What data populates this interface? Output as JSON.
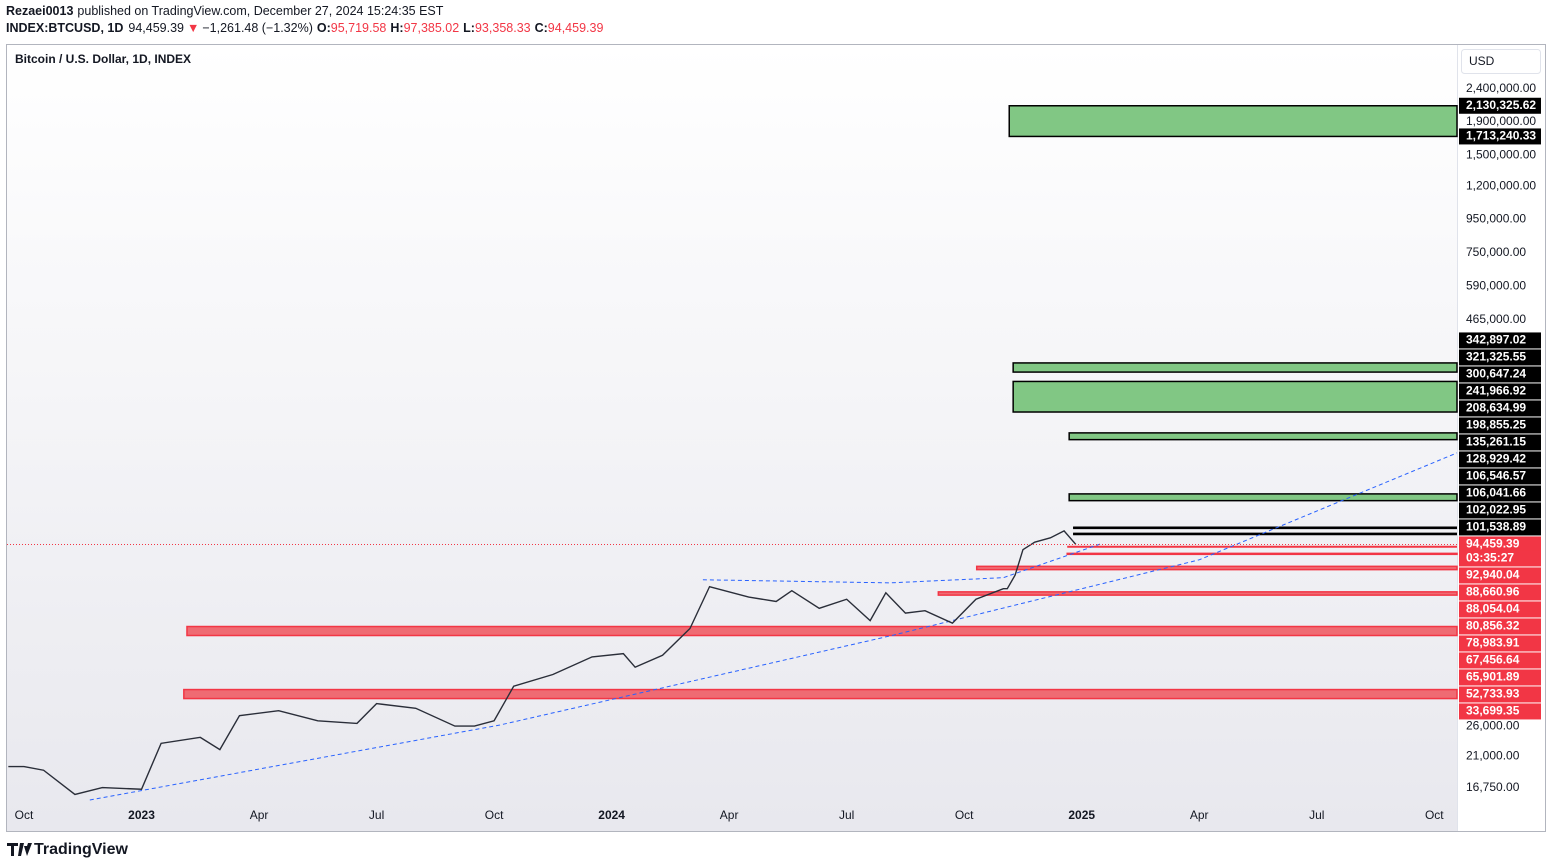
{
  "header": {
    "author": "Rezaei0013",
    "published": "published on TradingView.com, December 27, 2024 15:24:35 EST"
  },
  "chart_data": {
    "type": "line",
    "symbol": "INDEX:BTCUSD, 1D",
    "legend": "Bitcoin / U.S. Dollar, 1D, INDEX",
    "currency": "USD",
    "last": {
      "value": 94459.39,
      "label": "94,459.39"
    },
    "change_arrow": "▼",
    "change": "−1,261.48 (−1.32%)",
    "ohlc": [
      {
        "key": "O:",
        "value": 95719.58,
        "label": "95,719.58"
      },
      {
        "key": "H:",
        "value": 97385.02,
        "label": "97,385.02"
      },
      {
        "key": "L:",
        "value": 93358.33,
        "label": "93,358.33"
      },
      {
        "key": "C:",
        "value": 94459.39,
        "label": "94,459.39"
      }
    ],
    "countdown": "03:35:27",
    "log_scale": true,
    "x": [
      -0.4,
      0,
      0.5,
      1.3,
      2,
      3,
      3.5,
      4.5,
      5,
      5.5,
      6.5,
      7.5,
      8.5,
      9,
      10,
      11,
      11.5,
      12,
      12.5,
      13.5,
      14.5,
      15.3,
      15.6,
      16.3,
      17,
      17.5,
      18.5,
      19.2,
      19.6,
      20.3,
      21,
      21.6,
      22,
      22.5,
      23,
      23.7,
      24.3,
      25,
      25.1,
      25.3,
      25.5,
      25.8,
      26.2,
      26.55,
      26.85
    ],
    "series": [
      {
        "color": "#2a2e39",
        "values": [
          19500,
          19500,
          19000,
          16000,
          16800,
          16600,
          23000,
          24000,
          22000,
          28000,
          29000,
          27000,
          26500,
          30500,
          29500,
          26000,
          26000,
          27000,
          34500,
          37500,
          42500,
          43500,
          39500,
          43000,
          52000,
          70000,
          65000,
          63000,
          68000,
          60000,
          64000,
          55000,
          67000,
          58000,
          59000,
          54000,
          64000,
          69000,
          69000,
          76000,
          91000,
          96000,
          99000,
          104000,
          94459.39
        ]
      }
    ],
    "trendlines": [
      {
        "color": "#2962ff",
        "x": [
          1.68,
          12.15,
          22.1,
          30.0,
          36.58
        ],
        "values": [
          15380,
          26200,
          49300,
          84700,
          181000
        ]
      },
      {
        "color": "#2962ff",
        "x": [
          17.33,
          22.1,
          25.0,
          27.5
        ],
        "values": [
          73500,
          71900,
          74600,
          95000
        ]
      }
    ],
    "zones": [
      {
        "style": "band",
        "color": "#81c784",
        "label_color": "#000000",
        "start": 25.15,
        "top": {
          "value": 2130325.62,
          "label": "2,130,325.62"
        },
        "bottom": {
          "value": 1713240.33,
          "label": "1,713,240.33"
        }
      },
      {
        "style": "band",
        "color": "#81c784",
        "label_color": "#000000",
        "start": 25.25,
        "top": {
          "value": 342897.02,
          "label": "342,897.02"
        },
        "bottom": {
          "value": 321325.55,
          "label": "321,325.55"
        }
      },
      {
        "style": "band",
        "color": "#81c784",
        "label_color": "#000000",
        "start": 25.25,
        "top": {
          "value": 300647.24,
          "label": "300,647.24"
        },
        "bottom": {
          "value": 241966.92,
          "label": "241,966.92"
        }
      },
      {
        "style": "band",
        "color": "#81c784",
        "label_color": "#000000",
        "start": 26.68,
        "top": {
          "value": 208634.99,
          "label": "208,634.99"
        },
        "bottom": {
          "value": 198855.25,
          "label": "198,855.25"
        }
      },
      {
        "style": "band",
        "color": "#81c784",
        "label_color": "#000000",
        "start": 26.68,
        "top": {
          "value": 135261.15,
          "label": "135,261.15"
        },
        "bottom": {
          "value": 128929.42,
          "label": "128,929.42"
        }
      },
      {
        "style": "lines",
        "color": "#000000",
        "label_color": "#000000",
        "start": 26.78,
        "top": {
          "value": 106546.57,
          "label": "106,546.57"
        },
        "bottom": {
          "value": 106041.66,
          "label": "106,041.66"
        }
      },
      {
        "style": "lines",
        "color": "#000000",
        "label_color": "#000000",
        "start": 26.78,
        "top": {
          "value": 102022.95,
          "label": "102,022.95"
        },
        "bottom": {
          "value": 101538.89,
          "label": "101,538.89"
        }
      },
      {
        "style": "lines",
        "color": "#f23645",
        "label_color": "#f23645",
        "start": 26.63,
        "top": {
          "value": 92940.04,
          "label": "92,940.04"
        }
      },
      {
        "style": "band",
        "color": "#ef6b73",
        "label_color": "#f23645",
        "start": 26.63,
        "top": {
          "value": 88660.96,
          "label": "88,660.96"
        },
        "bottom": {
          "value": 88054.04,
          "label": "88,054.04"
        }
      },
      {
        "style": "band",
        "color": "#ef6b73",
        "label_color": "#f23645",
        "start": 24.32,
        "top": {
          "value": 80856.32,
          "label": "80,856.32"
        },
        "bottom": {
          "value": 78983.91,
          "label": "78,983.91"
        }
      },
      {
        "style": "band",
        "color": "#ef6b73",
        "label_color": "#f23645",
        "start": 23.34,
        "top": {
          "value": 67456.64,
          "label": "67,456.64"
        },
        "bottom": {
          "value": 65901.89,
          "label": "65,901.89"
        }
      },
      {
        "style": "band",
        "color": "#ef6b73",
        "label_color": "#f23645",
        "start": 4.16,
        "top": {
          "value": 52733.93,
          "label": "52,733.93"
        }
      },
      {
        "style": "band",
        "color": "#ef6b73",
        "label_color": "#f23645",
        "start": 4.08,
        "top": {
          "value": 33699.35,
          "label": "33,699.35"
        }
      }
    ],
    "xlim": [
      -0.434,
      36.58
    ],
    "ylim": [
      15380,
      3280000
    ],
    "xticks": [
      {
        "value": 0,
        "label": "Oct"
      },
      {
        "value": 3,
        "label": "2023"
      },
      {
        "value": 6,
        "label": "Apr"
      },
      {
        "value": 9,
        "label": "Jul"
      },
      {
        "value": 12,
        "label": "Oct"
      },
      {
        "value": 15,
        "label": "2024"
      },
      {
        "value": 18,
        "label": "Apr"
      },
      {
        "value": 21,
        "label": "Jul"
      },
      {
        "value": 24,
        "label": "Oct"
      },
      {
        "value": 27,
        "label": "2025"
      },
      {
        "value": 30,
        "label": "Apr"
      },
      {
        "value": 33,
        "label": "Jul"
      },
      {
        "value": 36,
        "label": "Oct"
      }
    ],
    "yticks": [
      {
        "value": 16750,
        "label": "16,750.00"
      },
      {
        "value": 21000,
        "label": "21,000.00"
      },
      {
        "value": 26000,
        "label": "26,000.00"
      },
      {
        "value": 465000,
        "label": "465,000.00"
      },
      {
        "value": 590000,
        "label": "590,000.00"
      },
      {
        "value": 750000,
        "label": "750,000.00"
      },
      {
        "value": 950000,
        "label": "950,000.00"
      },
      {
        "value": 1200000,
        "label": "1,200,000.00"
      },
      {
        "value": 1500000,
        "label": "1,500,000.00"
      },
      {
        "value": 1900000,
        "label": "1,900,000.00"
      },
      {
        "value": 2400000,
        "label": "2,400,000.00"
      }
    ],
    "grid": false
  },
  "footer": "TradingView"
}
